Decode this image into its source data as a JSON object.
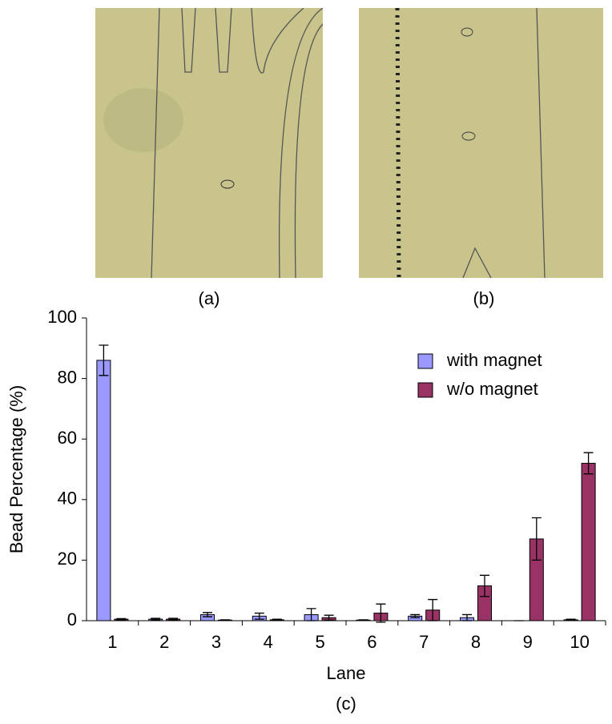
{
  "panels": {
    "a": "(a)",
    "b": "(b)"
  },
  "chart_data": {
    "type": "bar",
    "caption": "(c)",
    "x_label": "Lane",
    "y_label": "Bead Percentage (%)",
    "categories": [
      "1",
      "2",
      "3",
      "4",
      "5",
      "6",
      "7",
      "8",
      "9",
      "10"
    ],
    "series": [
      {
        "name": "with magnet",
        "color": "#9999ff",
        "values": [
          86,
          0.5,
          2,
          1.5,
          2,
          0.2,
          1.5,
          1,
          0,
          0.3
        ],
        "errors": [
          5,
          0.3,
          0.7,
          1,
          2,
          0.1,
          0.5,
          1,
          0,
          0.2
        ]
      },
      {
        "name": "w/o magnet",
        "color": "#993366",
        "values": [
          0.5,
          0.5,
          0.2,
          0.3,
          1,
          2.5,
          3.5,
          11.5,
          27,
          52
        ],
        "errors": [
          0.2,
          0.3,
          0.1,
          0.2,
          0.8,
          3,
          3.5,
          3.5,
          7,
          3.5
        ]
      }
    ],
    "ylim": [
      0,
      100
    ],
    "yticks": [
      0,
      20,
      40,
      60,
      80,
      100
    ],
    "grid": false,
    "legend": "top-right"
  }
}
